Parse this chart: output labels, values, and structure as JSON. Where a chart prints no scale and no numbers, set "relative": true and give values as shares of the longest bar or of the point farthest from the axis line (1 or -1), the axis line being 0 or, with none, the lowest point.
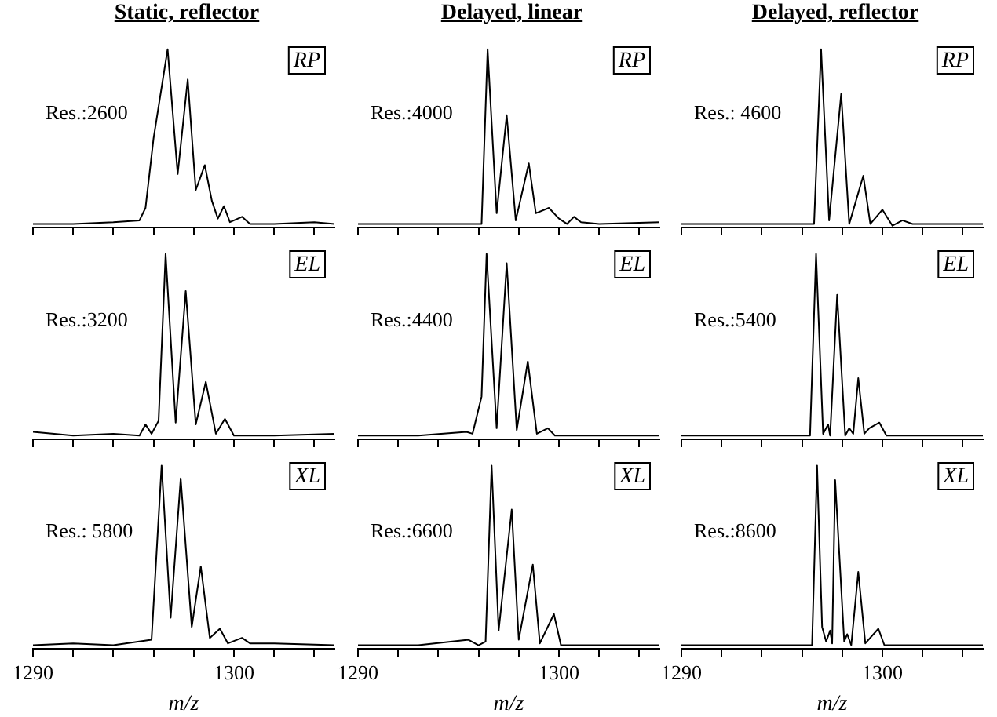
{
  "chart_data": [
    {
      "type": "line",
      "relative": true,
      "title": "Static, reflector",
      "annotations": [
        "Res.:2600",
        "RP"
      ],
      "marker": "none",
      "tick_labels": false,
      "xlim": [
        1290,
        1305
      ],
      "xticks": [
        {
          "value": 1290,
          "label": null
        },
        {
          "value": 1292,
          "label": null
        },
        {
          "value": 1294,
          "label": null
        },
        {
          "value": 1296,
          "label": null
        },
        {
          "value": 1298,
          "label": null
        },
        {
          "value": 1300,
          "label": null
        },
        {
          "value": 1302,
          "label": null
        },
        {
          "value": 1304,
          "label": null
        }
      ],
      "x": [
        1290,
        1292,
        1294,
        1295.3,
        1295.6,
        1296.0,
        1296.7,
        1297.2,
        1297.7,
        1298.1,
        1298.55,
        1298.9,
        1299.2,
        1299.5,
        1299.8,
        1300.4,
        1300.8,
        1302,
        1304,
        1305
      ],
      "series": [
        {
          "color": "#000000",
          "values": [
            0.02,
            0.02,
            0.03,
            0.04,
            0.11,
            0.5,
            1.0,
            0.3,
            0.83,
            0.21,
            0.35,
            0.15,
            0.05,
            0.12,
            0.03,
            0.06,
            0.02,
            0.02,
            0.03,
            0.02
          ]
        }
      ]
    },
    {
      "type": "line",
      "relative": true,
      "title": "Delayed, linear",
      "annotations": [
        "Res.:4000",
        "RP"
      ],
      "marker": "none",
      "tick_labels": false,
      "xlim": [
        1290,
        1305
      ],
      "xticks": [
        {
          "value": 1290,
          "label": null
        },
        {
          "value": 1292,
          "label": null
        },
        {
          "value": 1294,
          "label": null
        },
        {
          "value": 1296,
          "label": null
        },
        {
          "value": 1298,
          "label": null
        },
        {
          "value": 1300,
          "label": null
        },
        {
          "value": 1302,
          "label": null
        },
        {
          "value": 1304,
          "label": null
        }
      ],
      "x": [
        1290,
        1293,
        1295,
        1296.15,
        1296.45,
        1296.9,
        1297.4,
        1297.85,
        1298.5,
        1298.85,
        1299.5,
        1300,
        1300.4,
        1300.75,
        1301.1,
        1302,
        1305
      ],
      "series": [
        {
          "color": "#000000",
          "values": [
            0.02,
            0.02,
            0.02,
            0.02,
            1.0,
            0.08,
            0.63,
            0.04,
            0.36,
            0.08,
            0.11,
            0.05,
            0.02,
            0.06,
            0.03,
            0.02,
            0.03
          ]
        }
      ]
    },
    {
      "type": "line",
      "relative": true,
      "title": "Delayed, reflector",
      "annotations": [
        "Res.: 4600",
        "RP"
      ],
      "marker": "none",
      "tick_labels": false,
      "xlim": [
        1290,
        1305
      ],
      "xticks": [
        {
          "value": 1290,
          "label": null
        },
        {
          "value": 1292,
          "label": null
        },
        {
          "value": 1294,
          "label": null
        },
        {
          "value": 1296,
          "label": null
        },
        {
          "value": 1298,
          "label": null
        },
        {
          "value": 1300,
          "label": null
        },
        {
          "value": 1302,
          "label": null
        },
        {
          "value": 1304,
          "label": null
        }
      ],
      "x": [
        1290,
        1293,
        1296.6,
        1296.95,
        1297.35,
        1297.95,
        1298.35,
        1299.05,
        1299.4,
        1300,
        1300.5,
        1301,
        1301.5,
        1303,
        1305
      ],
      "series": [
        {
          "color": "#000000",
          "values": [
            0.02,
            0.02,
            0.02,
            1.0,
            0.04,
            0.75,
            0.02,
            0.29,
            0.02,
            0.1,
            0.01,
            0.04,
            0.02,
            0.02,
            0.02
          ]
        }
      ]
    },
    {
      "type": "line",
      "relative": true,
      "annotations": [
        "Res.:3200",
        "EL"
      ],
      "marker": "none",
      "tick_labels": false,
      "xlim": [
        1290,
        1305
      ],
      "xticks": [
        {
          "value": 1290,
          "label": null
        },
        {
          "value": 1292,
          "label": null
        },
        {
          "value": 1294,
          "label": null
        },
        {
          "value": 1296,
          "label": null
        },
        {
          "value": 1298,
          "label": null
        },
        {
          "value": 1300,
          "label": null
        },
        {
          "value": 1302,
          "label": null
        },
        {
          "value": 1304,
          "label": null
        }
      ],
      "x": [
        1290,
        1292,
        1294,
        1295.3,
        1295.6,
        1295.9,
        1296.25,
        1296.6,
        1297.1,
        1297.6,
        1298.1,
        1298.6,
        1299.1,
        1299.55,
        1300,
        1302,
        1305
      ],
      "series": [
        {
          "color": "#000000",
          "values": [
            0.04,
            0.02,
            0.03,
            0.02,
            0.08,
            0.03,
            0.1,
            1.0,
            0.09,
            0.8,
            0.08,
            0.31,
            0.03,
            0.11,
            0.02,
            0.02,
            0.03
          ]
        }
      ]
    },
    {
      "type": "line",
      "relative": true,
      "annotations": [
        "Res.:4400",
        "EL"
      ],
      "marker": "none",
      "tick_labels": false,
      "xlim": [
        1290,
        1305
      ],
      "xticks": [
        {
          "value": 1290,
          "label": null
        },
        {
          "value": 1292,
          "label": null
        },
        {
          "value": 1294,
          "label": null
        },
        {
          "value": 1296,
          "label": null
        },
        {
          "value": 1298,
          "label": null
        },
        {
          "value": 1300,
          "label": null
        },
        {
          "value": 1302,
          "label": null
        },
        {
          "value": 1304,
          "label": null
        }
      ],
      "x": [
        1290,
        1293,
        1295.4,
        1295.7,
        1296.15,
        1296.4,
        1296.9,
        1297.4,
        1297.9,
        1298.45,
        1298.9,
        1299.45,
        1299.8,
        1302,
        1305
      ],
      "series": [
        {
          "color": "#000000",
          "values": [
            0.02,
            0.02,
            0.04,
            0.03,
            0.23,
            1.0,
            0.06,
            0.95,
            0.05,
            0.42,
            0.03,
            0.06,
            0.02,
            0.02,
            0.02
          ]
        }
      ]
    },
    {
      "type": "line",
      "relative": true,
      "annotations": [
        "Res.:5400",
        "EL"
      ],
      "marker": "none",
      "tick_labels": false,
      "xlim": [
        1290,
        1305
      ],
      "xticks": [
        {
          "value": 1290,
          "label": null
        },
        {
          "value": 1292,
          "label": null
        },
        {
          "value": 1294,
          "label": null
        },
        {
          "value": 1296,
          "label": null
        },
        {
          "value": 1298,
          "label": null
        },
        {
          "value": 1300,
          "label": null
        },
        {
          "value": 1302,
          "label": null
        },
        {
          "value": 1304,
          "label": null
        }
      ],
      "x": [
        1290,
        1293,
        1296.4,
        1296.7,
        1297.05,
        1297.3,
        1297.4,
        1297.75,
        1298.15,
        1298.35,
        1298.55,
        1298.8,
        1299.1,
        1299.35,
        1299.85,
        1300.2,
        1302,
        1305
      ],
      "series": [
        {
          "color": "#000000",
          "values": [
            0.02,
            0.02,
            0.02,
            1.0,
            0.03,
            0.08,
            0.02,
            0.78,
            0.02,
            0.06,
            0.03,
            0.33,
            0.03,
            0.06,
            0.09,
            0.02,
            0.02,
            0.02
          ]
        }
      ]
    },
    {
      "type": "line",
      "relative": true,
      "annotations": [
        "Res.: 5800",
        "XL"
      ],
      "marker": "none",
      "tick_labels": "x",
      "xlabel": "m/z",
      "xlim": [
        1290,
        1305
      ],
      "xticks": [
        {
          "value": 1290,
          "label": "1290"
        },
        {
          "value": 1292,
          "label": null
        },
        {
          "value": 1294,
          "label": null
        },
        {
          "value": 1296,
          "label": null
        },
        {
          "value": 1298,
          "label": null
        },
        {
          "value": 1300,
          "label": "1300"
        },
        {
          "value": 1302,
          "label": null
        },
        {
          "value": 1304,
          "label": null
        }
      ],
      "x": [
        1290,
        1292,
        1294,
        1295.9,
        1296.4,
        1296.85,
        1297.35,
        1297.9,
        1298.35,
        1298.8,
        1299.3,
        1299.7,
        1300.4,
        1300.8,
        1302,
        1305
      ],
      "series": [
        {
          "color": "#000000",
          "values": [
            0.02,
            0.03,
            0.02,
            0.05,
            1.0,
            0.17,
            0.93,
            0.12,
            0.45,
            0.06,
            0.11,
            0.03,
            0.06,
            0.03,
            0.03,
            0.02
          ]
        }
      ]
    },
    {
      "type": "line",
      "relative": true,
      "annotations": [
        "Res.:6600",
        "XL"
      ],
      "marker": "none",
      "tick_labels": "x",
      "xlabel": "m/z",
      "xlim": [
        1290,
        1305
      ],
      "xticks": [
        {
          "value": 1290,
          "label": "1290"
        },
        {
          "value": 1292,
          "label": null
        },
        {
          "value": 1294,
          "label": null
        },
        {
          "value": 1296,
          "label": null
        },
        {
          "value": 1298,
          "label": null
        },
        {
          "value": 1300,
          "label": "1300"
        },
        {
          "value": 1302,
          "label": null
        },
        {
          "value": 1304,
          "label": null
        }
      ],
      "x": [
        1290,
        1293,
        1295.5,
        1296,
        1296.35,
        1296.65,
        1297.0,
        1297.65,
        1298.0,
        1298.7,
        1299.05,
        1299.75,
        1300.1,
        1302,
        1305
      ],
      "series": [
        {
          "color": "#000000",
          "values": [
            0.02,
            0.02,
            0.05,
            0.02,
            0.04,
            1.0,
            0.1,
            0.76,
            0.05,
            0.46,
            0.03,
            0.19,
            0.02,
            0.02,
            0.02
          ]
        }
      ]
    },
    {
      "type": "line",
      "relative": true,
      "annotations": [
        "Res.:8600",
        "XL"
      ],
      "marker": "none",
      "tick_labels": "x",
      "xlabel": "m/z",
      "xlim": [
        1290,
        1305
      ],
      "xticks": [
        {
          "value": 1290,
          "label": "1290"
        },
        {
          "value": 1292,
          "label": null
        },
        {
          "value": 1294,
          "label": null
        },
        {
          "value": 1296,
          "label": null
        },
        {
          "value": 1298,
          "label": null
        },
        {
          "value": 1300,
          "label": "1300"
        },
        {
          "value": 1302,
          "label": null
        },
        {
          "value": 1304,
          "label": null
        }
      ],
      "x": [
        1290,
        1293,
        1296.5,
        1296.75,
        1297.0,
        1297.2,
        1297.4,
        1297.5,
        1297.65,
        1298.1,
        1298.25,
        1298.45,
        1298.8,
        1299.15,
        1299.8,
        1300.1,
        1302,
        1305
      ],
      "series": [
        {
          "color": "#000000",
          "values": [
            0.02,
            0.02,
            0.02,
            1.0,
            0.12,
            0.04,
            0.1,
            0.03,
            0.92,
            0.04,
            0.08,
            0.02,
            0.42,
            0.03,
            0.11,
            0.02,
            0.02,
            0.02
          ]
        }
      ]
    }
  ]
}
